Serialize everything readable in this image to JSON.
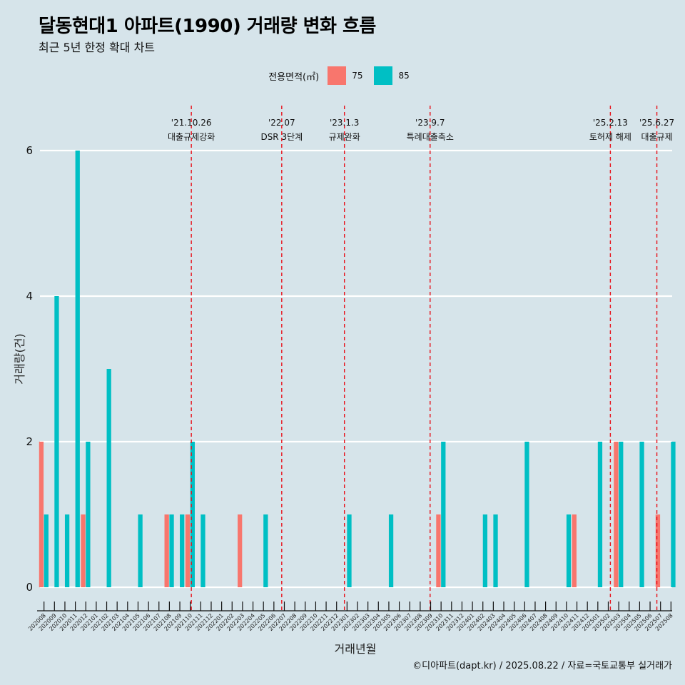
{
  "title": "달동현대1 아파트(1990) 거래량 변화 흐름",
  "subtitle": "최근 5년 한정 확대 차트",
  "legend": {
    "title": "전용면적(㎡)",
    "items": [
      {
        "label": "75",
        "color": "#f8766d"
      },
      {
        "label": "85",
        "color": "#00bfc4"
      }
    ]
  },
  "caption": "©디아파트(dapt.kr) / 2025.08.22 / 자료=국토교통부 실거래가",
  "chart_data": {
    "type": "bar",
    "xlabel": "거래년월",
    "ylabel": "거래량(건)",
    "ylim": [
      0,
      6
    ],
    "yticks": [
      0,
      2,
      4,
      6
    ],
    "categories": [
      "202008",
      "202009",
      "202010",
      "202011",
      "202012",
      "202101",
      "202102",
      "202103",
      "202104",
      "202105",
      "202106",
      "202107",
      "202108",
      "202109",
      "202110",
      "202111",
      "202112",
      "202201",
      "202202",
      "202203",
      "202204",
      "202205",
      "202206",
      "202207",
      "202208",
      "202209",
      "202210",
      "202211",
      "202212",
      "202301",
      "202302",
      "202303",
      "202304",
      "202305",
      "202306",
      "202307",
      "202308",
      "202309",
      "202310",
      "202311",
      "202312",
      "202401",
      "202402",
      "202403",
      "202404",
      "202405",
      "202406",
      "202407",
      "202408",
      "202409",
      "202410",
      "202411",
      "202412",
      "202501",
      "202502",
      "202503",
      "202504",
      "202505",
      "202506",
      "202507",
      "202508"
    ],
    "series": [
      {
        "name": "75",
        "color": "#f8766d",
        "values": [
          2,
          0,
          0,
          0,
          1,
          0,
          0,
          0,
          0,
          0,
          0,
          0,
          1,
          0,
          1,
          0,
          0,
          0,
          0,
          1,
          0,
          0,
          0,
          0,
          0,
          0,
          0,
          0,
          0,
          0,
          0,
          0,
          0,
          0,
          0,
          0,
          0,
          0,
          1,
          0,
          0,
          0,
          0,
          0,
          0,
          0,
          0,
          0,
          0,
          0,
          0,
          1,
          0,
          0,
          0,
          2,
          0,
          0,
          0,
          1,
          0
        ]
      },
      {
        "name": "85",
        "color": "#00bfc4",
        "values": [
          1,
          4,
          1,
          6,
          2,
          0,
          3,
          0,
          0,
          1,
          0,
          0,
          1,
          1,
          2,
          1,
          0,
          0,
          0,
          0,
          0,
          1,
          0,
          0,
          0,
          0,
          0,
          0,
          0,
          1,
          0,
          0,
          0,
          1,
          0,
          0,
          0,
          0,
          2,
          0,
          0,
          0,
          1,
          1,
          0,
          0,
          2,
          0,
          0,
          0,
          1,
          0,
          0,
          2,
          0,
          2,
          0,
          2,
          0,
          0,
          2
        ]
      }
    ],
    "annotations": [
      {
        "date": "'21.10.26",
        "label": "대출규제강화",
        "category": "202110",
        "offset": 0.35,
        "ylevel": 1
      },
      {
        "date": "'22.07",
        "label": "DSR 3단계",
        "category": "202207",
        "offset": 0,
        "ylevel": 1
      },
      {
        "date": "'23.1.3",
        "label": "규제완화",
        "category": "202301",
        "offset": 0,
        "ylevel": 1
      },
      {
        "date": "'23.9.7",
        "label": "특례대출축소",
        "category": "202309",
        "offset": 0.2,
        "ylevel": 1
      },
      {
        "date": "'25.2.13",
        "label": "토허제 해제",
        "category": "202502",
        "offset": 0.45,
        "ylevel": 2
      },
      {
        "date": "'25.6.27",
        "label": "대출규제",
        "category": "202506",
        "offset": 0.9,
        "ylevel": 2
      }
    ]
  }
}
